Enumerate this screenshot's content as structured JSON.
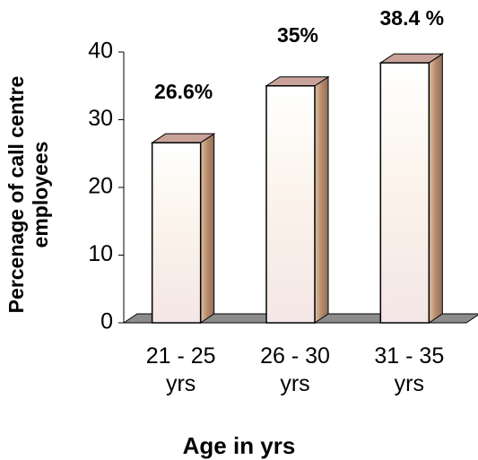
{
  "chart_data": {
    "type": "bar3d",
    "x_label": "Age in yrs",
    "y_label": "Percenage of call centre employees",
    "categories": [
      "21 - 25 yrs",
      "26 - 30 yrs",
      "31 - 35 yrs"
    ],
    "values": [
      26.6,
      35,
      38.4
    ],
    "value_labels": [
      "26.6%",
      "35%",
      "38.4 %"
    ],
    "ylim": [
      0,
      40
    ],
    "yticks": [
      0,
      10,
      20,
      30,
      40
    ]
  }
}
